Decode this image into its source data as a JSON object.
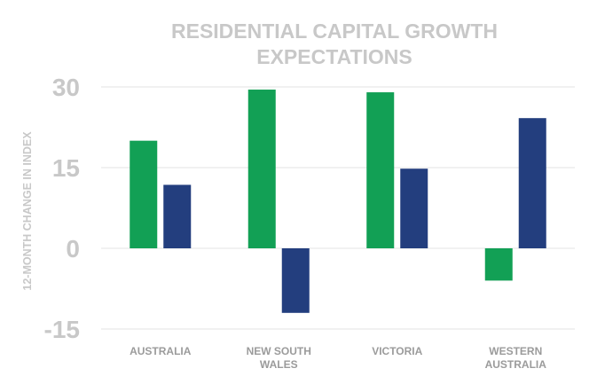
{
  "chart_data": {
    "type": "bar",
    "title_lines": [
      "RESIDENTIAL CAPITAL GROWTH",
      "EXPECTATIONS"
    ],
    "xlabel": "",
    "ylabel": "12-MONTH CHANGE IN INDEX",
    "ylim": [
      -15,
      30
    ],
    "yticks": [
      "30",
      "15",
      "0",
      "-15"
    ],
    "grid": true,
    "categories": [
      [
        "AUSTRALIA"
      ],
      [
        "NEW SOUTH",
        "WALES"
      ],
      [
        "VICTORIA"
      ],
      [
        "WESTERN",
        "AUSTRALIA"
      ]
    ],
    "series": [
      {
        "color": "#12a055",
        "values": [
          20,
          29.5,
          29,
          -6
        ]
      },
      {
        "color": "#233e7e",
        "values": [
          11.8,
          -12,
          14.8,
          24.2
        ]
      }
    ],
    "legend": "none"
  }
}
